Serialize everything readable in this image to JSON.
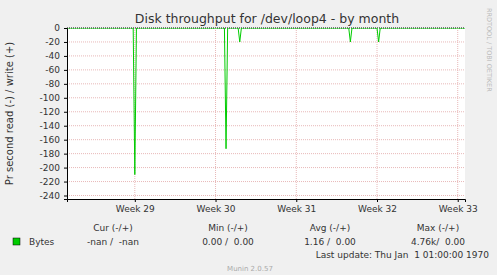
{
  "chart_data": {
    "type": "line",
    "title": "Disk throughput for /dev/loop4 - by month",
    "y_label": "Pr second read (-) / write (+)",
    "x": [
      28.16,
      28.98,
      29.0,
      29.02,
      30.11,
      30.13,
      30.15,
      30.28,
      30.3,
      30.32,
      31.65,
      31.67,
      31.69,
      32.0,
      32.02,
      32.04,
      33.09
    ],
    "series": [
      {
        "name": "Bytes",
        "color": "#00cc00",
        "values": [
          0,
          0,
          -210,
          0,
          0,
          -173,
          0,
          0,
          -20,
          0,
          0,
          -20,
          0,
          0,
          -20,
          0,
          0
        ]
      }
    ],
    "xlim": [
      28.16,
      33.09
    ],
    "xticks": [
      {
        "value": 29,
        "label": "Week 29"
      },
      {
        "value": 30,
        "label": "Week 30"
      },
      {
        "value": 31,
        "label": "Week 31"
      },
      {
        "value": 32,
        "label": "Week 32"
      },
      {
        "value": 33,
        "label": "Week 33"
      }
    ],
    "ylim": [
      -245,
      0
    ],
    "yticks": [
      0,
      -20,
      -40,
      -60,
      -80,
      -100,
      -120,
      -140,
      -160,
      -180,
      -200,
      -220,
      -240
    ],
    "grid": true,
    "legend_table": {
      "columns": [
        "Cur (-/+)",
        "Min (-/+)",
        "Avg (-/+)",
        "Max (-/+)"
      ],
      "cells": [
        "-nan /  -nan",
        "0.00 /  0.00",
        "1.16 /  0.00",
        "4.76k/  0.00"
      ]
    },
    "annotations": [
      "Last update: Thu Jan  1 01:00:00 1970",
      "Munin 2.0.57",
      "RRDTOOL / TOBI OETIKER"
    ]
  }
}
